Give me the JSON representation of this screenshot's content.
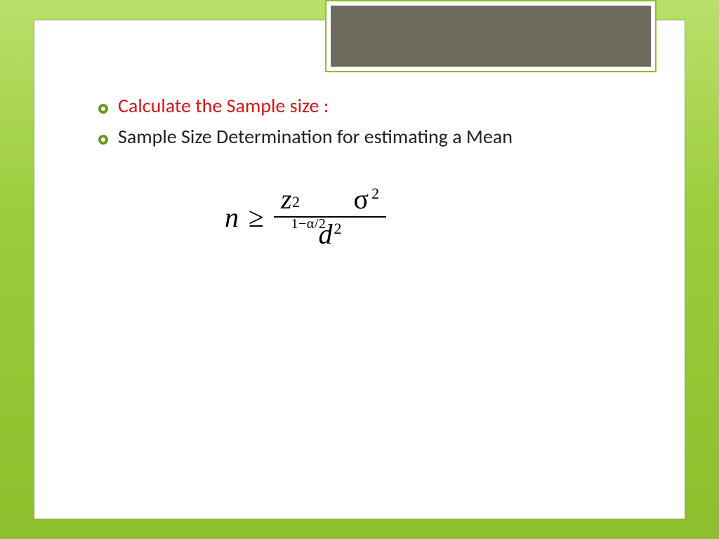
{
  "theme": {
    "bg_gradient_top": "#b9e06a",
    "bg_gradient_mid": "#9ccc3c",
    "bg_gradient_bottom": "#8cbf2d",
    "card_bg": "#ffffff",
    "card_border": "#8aa84a",
    "ornament_border": "#8cbf2d",
    "ornament_fill": "#6f6a5e",
    "bullet_color": "#6a9a1f",
    "text_red": "#d11a1a",
    "text_black": "#222222"
  },
  "bullets": [
    {
      "text": "Calculate the Sample size :",
      "color": "red"
    },
    {
      "text": "Sample Size Determination for estimating a Mean",
      "color": "black"
    }
  ],
  "formula": {
    "lhs_var": "n",
    "relation": "≥",
    "numerator": {
      "z_var": "z",
      "z_superscript": "2",
      "z_subscript": "1−α/2",
      "sigma": "σ",
      "sigma_superscript": "2"
    },
    "denominator": {
      "var": "d",
      "superscript": "2"
    }
  }
}
